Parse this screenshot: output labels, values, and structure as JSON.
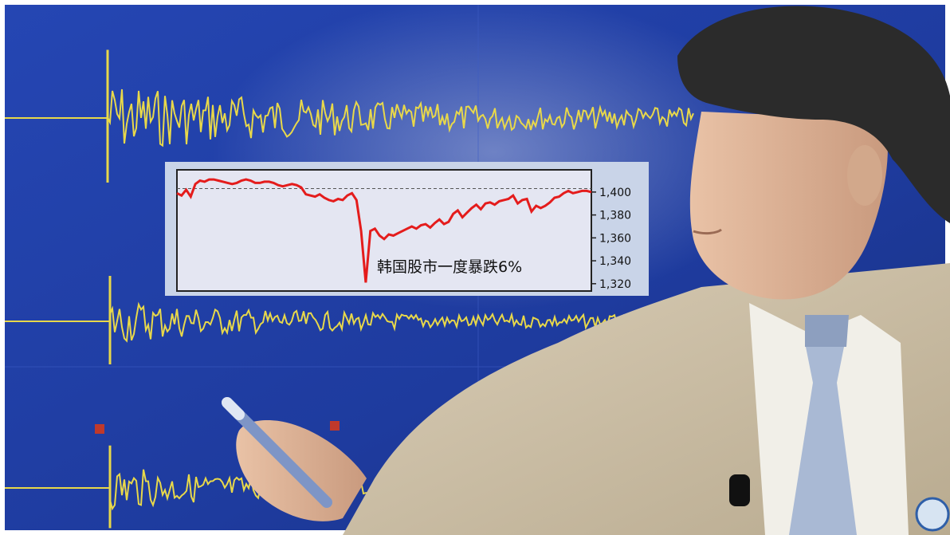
{
  "scene": {
    "description_free": true,
    "background_color": "#1f3fa8",
    "seismograph_color": "#e8d84a"
  },
  "inset": {
    "annotation": "韩国股市一度暴跌6%"
  },
  "chart_data": {
    "type": "line",
    "title": "",
    "xlabel": "",
    "ylabel": "",
    "ylim": [
      1315,
      1418
    ],
    "yticks": [
      1320,
      1340,
      1360,
      1380,
      1400
    ],
    "ytick_labels": [
      "1,320",
      "1,340",
      "1,360",
      "1,380",
      "1,400"
    ],
    "reference_line": 1403,
    "grid": false,
    "series": [
      {
        "color": "#e41c1c",
        "values": [
          1399,
          1397,
          1402,
          1396,
          1407,
          1410,
          1409,
          1411,
          1411,
          1410,
          1409,
          1408,
          1407,
          1408,
          1410,
          1411,
          1410,
          1408,
          1408,
          1409,
          1409,
          1408,
          1406,
          1405,
          1406,
          1407,
          1406,
          1404,
          1398,
          1397,
          1396,
          1398,
          1395,
          1393,
          1392,
          1394,
          1393,
          1397,
          1399,
          1393,
          1366,
          1321,
          1366,
          1368,
          1362,
          1359,
          1363,
          1362,
          1364,
          1366,
          1368,
          1370,
          1368,
          1371,
          1372,
          1369,
          1373,
          1376,
          1372,
          1374,
          1381,
          1384,
          1378,
          1382,
          1386,
          1389,
          1385,
          1390,
          1391,
          1389,
          1392,
          1393,
          1394,
          1397,
          1390,
          1393,
          1394,
          1383,
          1388,
          1386,
          1388,
          1391,
          1395,
          1396,
          1399,
          1401,
          1399,
          1400,
          1401,
          1401,
          1400
        ]
      }
    ]
  }
}
